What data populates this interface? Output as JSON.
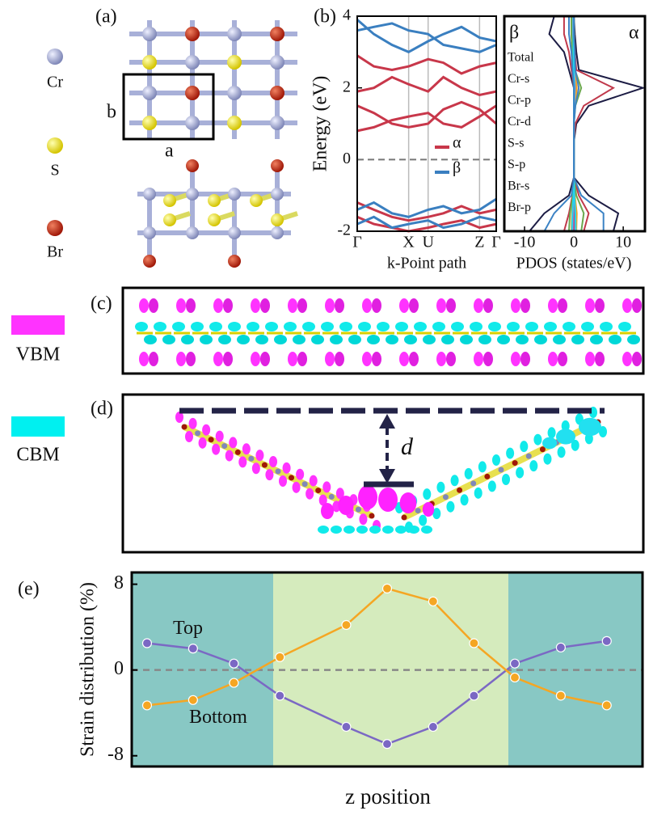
{
  "panel_a": {
    "label": "(a)",
    "lattice_a": "a",
    "lattice_b": "b",
    "legend": [
      "Cr",
      "S",
      "Br"
    ]
  },
  "panel_c": {
    "label": "(c)",
    "legend": "VBM"
  },
  "panel_d": {
    "label": "(d)",
    "legend": "CBM",
    "annotation": "d"
  },
  "chart_data": [
    {
      "type": "line",
      "panel_label": "(b)",
      "ylabel": "Energy (eV)",
      "xlabel": "k-Point path",
      "x": [
        0,
        0.12,
        0.25,
        0.37,
        0.51,
        0.62,
        0.75,
        0.88,
        1
      ],
      "xlim": [
        0,
        1
      ],
      "xticks": [
        {
          "value": 0,
          "label": "Γ"
        },
        {
          "value": 0.37,
          "label": "X"
        },
        {
          "value": 0.51,
          "label": "U"
        },
        {
          "value": 0.88,
          "label": "Z"
        },
        {
          "value": 1,
          "label": "Γ"
        }
      ],
      "ylim": [
        -2,
        4
      ],
      "yticks": [
        -2,
        0,
        2,
        4
      ],
      "series": [
        {
          "name": "α",
          "color": "#c8374a",
          "values": [
            [
              0.8,
              0.9,
              1.1,
              1.2,
              1.3,
              1.0,
              0.9,
              1.2,
              1.5
            ],
            [
              1.5,
              1.3,
              1.0,
              0.9,
              1.0,
              1.4,
              1.6,
              1.4,
              1.0
            ],
            [
              1.9,
              2.0,
              2.3,
              2.1,
              1.9,
              2.3,
              2.0,
              1.8,
              1.9
            ],
            [
              2.9,
              2.6,
              2.5,
              2.6,
              2.8,
              2.7,
              2.4,
              2.6,
              2.7
            ],
            [
              -1.2,
              -1.4,
              -1.6,
              -1.7,
              -1.6,
              -1.5,
              -1.3,
              -1.5,
              -1.4
            ],
            [
              -1.6,
              -1.8,
              -1.9,
              -2.0,
              -1.9,
              -1.8,
              -1.7,
              -1.9,
              -1.8
            ]
          ]
        },
        {
          "name": "β",
          "color": "#3a7fc0",
          "values": [
            [
              3.9,
              3.5,
              3.2,
              3.0,
              3.3,
              3.5,
              3.7,
              3.4,
              3.3
            ],
            [
              3.6,
              3.7,
              3.8,
              3.6,
              3.5,
              3.2,
              3.1,
              3.0,
              3.2
            ],
            [
              -1.4,
              -1.2,
              -1.5,
              -1.6,
              -1.4,
              -1.3,
              -1.5,
              -1.4,
              -1.1
            ],
            [
              -1.8,
              -1.6,
              -1.9,
              -1.8,
              -1.7,
              -1.9,
              -1.8,
              -1.6,
              -1.7
            ]
          ]
        }
      ]
    },
    {
      "type": "line",
      "orientation": "horizontal",
      "spin_labels": [
        "β",
        "α"
      ],
      "xlabel": "PDOS (states/eV)",
      "energy": [
        -2,
        -1.5,
        -1,
        -0.5,
        0,
        0.5,
        1,
        1.5,
        2,
        2.5,
        3,
        3.5,
        4
      ],
      "xlim": [
        -14.1,
        14.4
      ],
      "xticks": [
        -10,
        0,
        10
      ],
      "ylim": [
        -2,
        4
      ],
      "series": [
        {
          "name": "Total",
          "color": "#1c1c44",
          "values": [
            8,
            9,
            3,
            0,
            0,
            0,
            0.5,
            3,
            14,
            1,
            0.5,
            0.2,
            0
          ],
          "values_beta": [
            -9,
            -6,
            -1,
            0,
            0,
            0,
            0,
            0,
            0,
            -1,
            -2,
            -5,
            -4
          ]
        },
        {
          "name": "Cr-s",
          "color": "#d6336c",
          "values": [
            0.2,
            0.2,
            0.1,
            0,
            0,
            0,
            0,
            0.1,
            0.3,
            0.1,
            0,
            0,
            0
          ],
          "values_beta": [
            -0.2,
            -0.2,
            -0.1,
            0,
            0,
            0,
            0,
            0,
            0,
            -0.1,
            -0.2,
            -0.3,
            -0.3
          ]
        },
        {
          "name": "Cr-p",
          "color": "#f5a623",
          "values": [
            0.5,
            0.6,
            0.2,
            0,
            0,
            0,
            0,
            0.2,
            0.6,
            0.2,
            0.1,
            0,
            0
          ],
          "values_beta": [
            -0.5,
            -0.4,
            -0.1,
            0,
            0,
            0,
            0,
            0,
            0,
            -0.2,
            -0.3,
            -0.5,
            -0.5
          ]
        },
        {
          "name": "Cr-d",
          "color": "#c0394b",
          "values": [
            2,
            3,
            1,
            0,
            0,
            0,
            0.3,
            2,
            8,
            0.5,
            0.2,
            0,
            0
          ],
          "values_beta": [
            -2,
            -1,
            -0.3,
            0,
            0,
            0,
            0,
            0,
            0,
            -0.5,
            -1,
            -2,
            -2
          ]
        },
        {
          "name": "S-s",
          "color": "#9b8fd0",
          "values": [
            0.3,
            0.3,
            0.1,
            0,
            0,
            0,
            0,
            0.1,
            0.2,
            0.1,
            0,
            0,
            0
          ],
          "values_beta": [
            -0.3,
            -0.2,
            -0.1,
            0,
            0,
            0,
            0,
            0,
            0,
            -0.1,
            -0.1,
            -0.2,
            -0.2
          ]
        },
        {
          "name": "S-p",
          "color": "#6aa84f",
          "values": [
            1.5,
            2,
            0.5,
            0,
            0,
            0,
            0,
            0.3,
            1.5,
            0.2,
            0,
            0,
            0
          ],
          "values_beta": [
            -1,
            -0.8,
            -0.2,
            0,
            0,
            0,
            0,
            0,
            0,
            -0.2,
            -0.3,
            -0.5,
            -0.5
          ]
        },
        {
          "name": "Br-s",
          "color": "#22d3ee",
          "values": [
            0.4,
            0.3,
            0.1,
            0,
            0,
            0,
            0,
            0,
            0.1,
            0,
            0,
            0,
            0
          ],
          "values_beta": [
            -0.4,
            -0.3,
            -0.1,
            0,
            0,
            0,
            0,
            0,
            0,
            0,
            -0.1,
            -0.1,
            -0.1
          ]
        },
        {
          "name": "Br-p",
          "color": "#3b82c4",
          "values": [
            6,
            6,
            1.5,
            0,
            0,
            0,
            0,
            0.3,
            1,
            0.3,
            0.2,
            0,
            0
          ],
          "values_beta": [
            -6,
            -4,
            -0.5,
            0,
            0,
            0,
            0,
            0,
            0,
            -0.3,
            -0.5,
            -1,
            -1
          ]
        }
      ]
    },
    {
      "type": "line",
      "panel_label": "(e)",
      "ylabel": "Strain distribution (%)",
      "xlabel": "z position",
      "xlim": [
        0,
        1
      ],
      "ylim": [
        -9,
        9.1
      ],
      "yticks": [
        -8,
        0,
        8
      ],
      "series": [
        {
          "name": "Top",
          "color": "#7b68c4",
          "x": [
            0.03,
            0.12,
            0.2,
            0.29,
            0.42,
            0.5,
            0.59,
            0.67,
            0.75,
            0.84,
            0.93
          ],
          "values": [
            2.5,
            2.0,
            0.6,
            -2.4,
            -5.3,
            -6.9,
            -5.3,
            -2.4,
            0.6,
            2.1,
            2.7
          ]
        },
        {
          "name": "Bottom",
          "color": "#f5a623",
          "x": [
            0.03,
            0.12,
            0.2,
            0.29,
            0.42,
            0.5,
            0.59,
            0.67,
            0.75,
            0.84,
            0.93
          ],
          "values": [
            -3.3,
            -2.8,
            -1.2,
            1.2,
            4.2,
            7.6,
            6.4,
            2.5,
            -0.7,
            -2.4,
            -3.3
          ]
        }
      ]
    }
  ]
}
